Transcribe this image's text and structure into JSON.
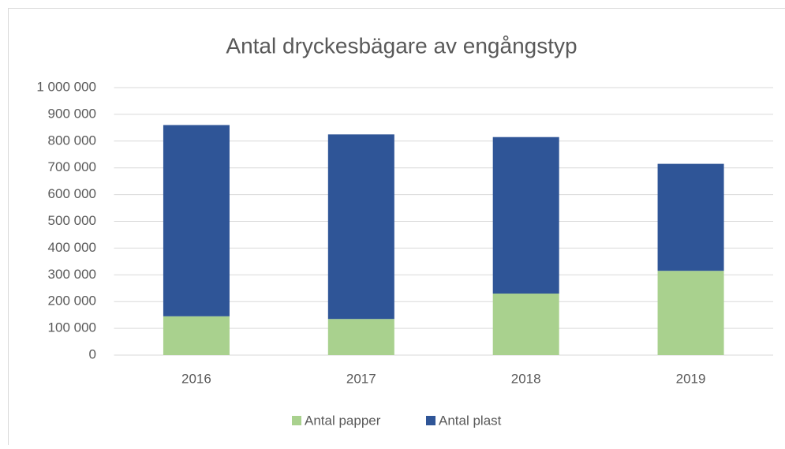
{
  "chart_data": {
    "type": "stacked_bar",
    "title": "Antal dryckesbägare av engångstyp",
    "categories": [
      "2016",
      "2017",
      "2018",
      "2019"
    ],
    "series": [
      {
        "name": "Antal papper",
        "color": "#a9d18e",
        "values": [
          145000,
          135000,
          230000,
          315000
        ]
      },
      {
        "name": "Antal plast",
        "color": "#2f5597",
        "values": [
          715000,
          690000,
          585000,
          400000
        ]
      }
    ],
    "ylim": [
      0,
      1000000
    ],
    "yticks": [
      0,
      {
        "value": 100000,
        "label": "100 000"
      },
      {
        "value": 200000,
        "label": "200 000"
      },
      {
        "value": 300000,
        "label": "300 000"
      },
      {
        "value": 400000,
        "label": "400 000"
      },
      {
        "value": 500000,
        "label": "500 000"
      },
      {
        "value": 600000,
        "label": "600 000"
      },
      {
        "value": 700000,
        "label": "700 000"
      },
      {
        "value": 800000,
        "label": "800 000"
      },
      {
        "value": 900000,
        "label": "900 000"
      },
      {
        "value": 1000000,
        "label": "1 000 000"
      }
    ],
    "grid": true,
    "legend": "bottom"
  }
}
